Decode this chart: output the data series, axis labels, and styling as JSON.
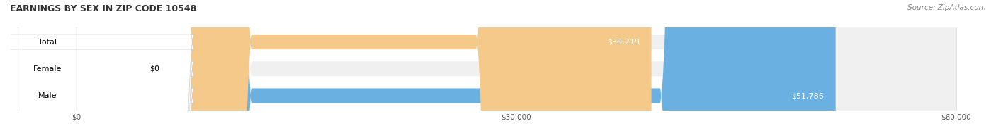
{
  "title": "EARNINGS BY SEX IN ZIP CODE 10548",
  "source": "Source: ZipAtlas.com",
  "categories": [
    "Male",
    "Female",
    "Total"
  ],
  "values": [
    51786,
    0,
    39219
  ],
  "bar_colors": [
    "#6ab0e0",
    "#f4a0b0",
    "#f5c98a"
  ],
  "label_colors": [
    "white",
    "black",
    "white"
  ],
  "bar_bg_color": "#f0f0f0",
  "label_texts": [
    "$51,786",
    "$0",
    "$39,219"
  ],
  "xlim": [
    0,
    60000
  ],
  "xticks": [
    0,
    30000,
    60000
  ],
  "xtick_labels": [
    "$0",
    "$30,000",
    "$60,000"
  ],
  "figsize": [
    14.06,
    1.96
  ],
  "dpi": 100,
  "bar_height": 0.55,
  "title_fontsize": 9,
  "source_fontsize": 7.5,
  "label_fontsize": 8,
  "category_fontsize": 8,
  "tick_fontsize": 7.5
}
